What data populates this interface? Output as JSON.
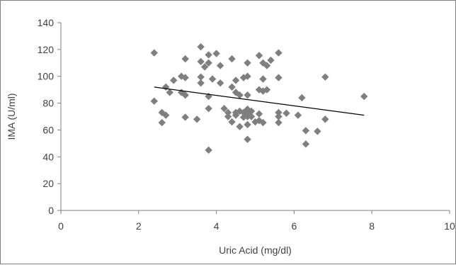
{
  "chart_data": {
    "type": "scatter",
    "title": "",
    "xlabel": "Uric Acid (mg/dl)",
    "ylabel": "IMA (U/ml)",
    "xlim": [
      0,
      10
    ],
    "ylim": [
      0,
      140
    ],
    "xticks": [
      0,
      2,
      4,
      6,
      8,
      10
    ],
    "yticks": [
      0,
      20,
      40,
      60,
      80,
      100,
      120,
      140
    ],
    "grid": false,
    "legend": "none",
    "marker_color": "#7f7f7f",
    "line_color": "#000000",
    "points": [
      [
        2.4,
        117.5
      ],
      [
        2.4,
        81.5
      ],
      [
        2.6,
        65.5
      ],
      [
        2.6,
        73
      ],
      [
        2.7,
        71
      ],
      [
        2.7,
        92
      ],
      [
        2.8,
        88
      ],
      [
        2.9,
        97
      ],
      [
        3.1,
        100
      ],
      [
        3.1,
        88
      ],
      [
        3.2,
        113
      ],
      [
        3.2,
        99
      ],
      [
        3.2,
        86
      ],
      [
        3.2,
        69.5
      ],
      [
        3.5,
        68
      ],
      [
        3.6,
        122
      ],
      [
        3.6,
        111
      ],
      [
        3.6,
        99.5
      ],
      [
        3.6,
        95
      ],
      [
        3.7,
        107
      ],
      [
        3.8,
        116
      ],
      [
        3.8,
        110
      ],
      [
        3.8,
        85
      ],
      [
        3.8,
        76
      ],
      [
        3.8,
        45
      ],
      [
        3.9,
        98
      ],
      [
        4.0,
        117
      ],
      [
        4.1,
        108
      ],
      [
        4.1,
        95
      ],
      [
        4.2,
        76
      ],
      [
        4.3,
        73
      ],
      [
        4.3,
        70
      ],
      [
        4.4,
        113
      ],
      [
        4.4,
        92
      ],
      [
        4.4,
        66
      ],
      [
        4.5,
        97
      ],
      [
        4.5,
        88
      ],
      [
        4.5,
        73
      ],
      [
        4.5,
        71
      ],
      [
        4.6,
        86
      ],
      [
        4.6,
        74
      ],
      [
        4.6,
        62.5
      ],
      [
        4.7,
        99
      ],
      [
        4.7,
        73
      ],
      [
        4.7,
        69.5
      ],
      [
        4.8,
        110
      ],
      [
        4.8,
        100
      ],
      [
        4.8,
        86
      ],
      [
        4.8,
        75.5
      ],
      [
        4.8,
        72
      ],
      [
        4.8,
        70
      ],
      [
        4.8,
        64
      ],
      [
        4.8,
        53
      ],
      [
        4.9,
        74
      ],
      [
        4.9,
        70
      ],
      [
        5.0,
        66
      ],
      [
        5.1,
        115.5
      ],
      [
        5.1,
        90
      ],
      [
        5.1,
        72
      ],
      [
        5.1,
        67
      ],
      [
        5.2,
        110
      ],
      [
        5.2,
        98
      ],
      [
        5.2,
        89
      ],
      [
        5.2,
        65.5
      ],
      [
        5.3,
        90
      ],
      [
        5.3,
        108
      ],
      [
        5.4,
        112
      ],
      [
        5.6,
        117.5
      ],
      [
        5.6,
        99
      ],
      [
        5.6,
        73
      ],
      [
        5.6,
        70
      ],
      [
        5.6,
        65.5
      ],
      [
        5.8,
        72.5
      ],
      [
        6.1,
        71
      ],
      [
        6.2,
        84
      ],
      [
        6.3,
        59.5
      ],
      [
        6.3,
        49.5
      ],
      [
        6.6,
        59
      ],
      [
        6.8,
        99.5
      ],
      [
        6.8,
        68
      ],
      [
        7.8,
        85
      ]
    ],
    "trendline": {
      "x": [
        2.4,
        7.8
      ],
      "y": [
        92,
        71
      ]
    }
  }
}
